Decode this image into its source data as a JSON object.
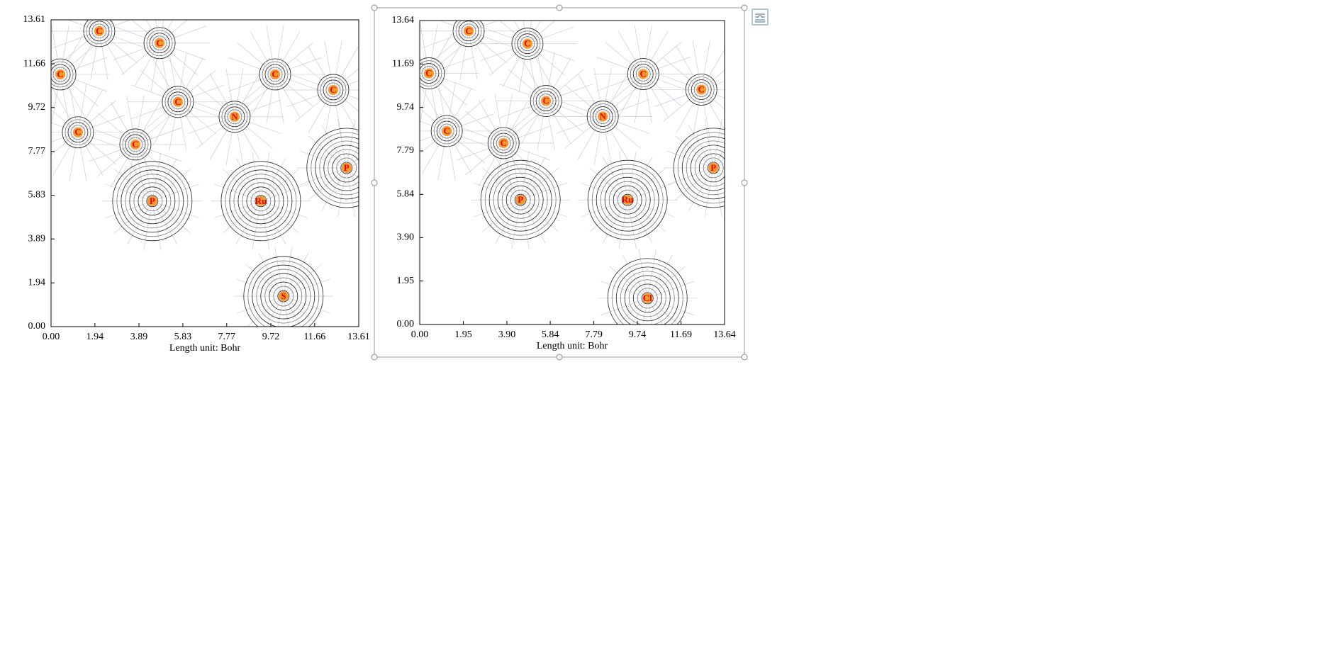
{
  "plots": [
    {
      "xlim": [
        0,
        13.61
      ],
      "ylim": [
        0,
        13.61
      ],
      "xticks": [
        {
          "value": 0,
          "label": "0.00"
        },
        1.94,
        3.89,
        5.83,
        7.77,
        9.72,
        11.66,
        13.61
      ],
      "yticks": [
        {
          "value": 0,
          "label": "0.00"
        },
        1.94,
        3.89,
        5.83,
        7.77,
        9.72,
        11.66,
        13.61
      ],
      "xlabel": "Length unit: Bohr",
      "atoms": [
        {
          "label": "C",
          "x": 2.13,
          "y": 13.11
        },
        {
          "label": "C",
          "x": 4.8,
          "y": 12.58
        },
        {
          "label": "C",
          "x": 0.41,
          "y": 11.19
        },
        {
          "label": "C",
          "x": 5.61,
          "y": 9.97
        },
        {
          "label": "N",
          "x": 8.12,
          "y": 9.31
        },
        {
          "label": "C",
          "x": 9.91,
          "y": 11.19
        },
        {
          "label": "C",
          "x": 12.48,
          "y": 10.5
        },
        {
          "label": "C",
          "x": 1.19,
          "y": 8.62
        },
        {
          "label": "C",
          "x": 3.73,
          "y": 8.08
        },
        {
          "label": "P",
          "x": 13.07,
          "y": 7.04
        },
        {
          "label": "P",
          "x": 4.48,
          "y": 5.57
        },
        {
          "label": "Ru",
          "x": 9.28,
          "y": 5.57
        },
        {
          "label": "S",
          "x": 10.28,
          "y": 1.35
        }
      ]
    },
    {
      "xlim": [
        0,
        13.64
      ],
      "ylim": [
        0,
        13.64
      ],
      "xticks": [
        {
          "value": 0,
          "label": "0.00"
        },
        1.95,
        {
          "value": 3.9,
          "label": "3.90"
        },
        5.84,
        7.79,
        9.74,
        11.69,
        13.64
      ],
      "yticks": [
        {
          "value": 0,
          "label": "0.00"
        },
        1.95,
        {
          "value": 3.9,
          "label": "3.90"
        },
        5.84,
        7.79,
        9.74,
        11.69,
        13.64
      ],
      "xlabel": "Length unit: Bohr",
      "atoms": [
        {
          "label": "C",
          "x": 2.19,
          "y": 13.17
        },
        {
          "label": "C",
          "x": 4.82,
          "y": 12.6
        },
        {
          "label": "C",
          "x": 0.41,
          "y": 11.27
        },
        {
          "label": "C",
          "x": 5.65,
          "y": 10.03
        },
        {
          "label": "N",
          "x": 8.19,
          "y": 9.33
        },
        {
          "label": "C",
          "x": 10.0,
          "y": 11.24
        },
        {
          "label": "C",
          "x": 12.6,
          "y": 10.54
        },
        {
          "label": "C",
          "x": 1.21,
          "y": 8.68
        },
        {
          "label": "C",
          "x": 3.75,
          "y": 8.14
        },
        {
          "label": "P",
          "x": 13.14,
          "y": 7.03
        },
        {
          "label": "P",
          "x": 4.51,
          "y": 5.59
        },
        {
          "label": "Ru",
          "x": 9.3,
          "y": 5.59
        },
        {
          "label": "Cl",
          "x": 10.19,
          "y": 1.18
        }
      ]
    }
  ]
}
